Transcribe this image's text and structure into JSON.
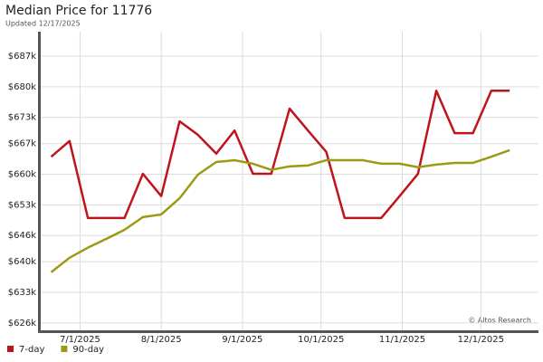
{
  "chart_data": {
    "type": "line",
    "title": "Median Price for 11776",
    "subtitle": "Updated 12/17/2025",
    "annotation": "© Altos Research",
    "x": [
      "2025-06-20",
      "2025-06-27",
      "2025-07-04",
      "2025-07-11",
      "2025-07-18",
      "2025-07-25",
      "2025-08-01",
      "2025-08-08",
      "2025-08-15",
      "2025-08-22",
      "2025-08-29",
      "2025-09-05",
      "2025-09-12",
      "2025-09-19",
      "2025-09-26",
      "2025-10-03",
      "2025-10-10",
      "2025-10-17",
      "2025-10-24",
      "2025-10-31",
      "2025-11-07",
      "2025-11-14",
      "2025-11-21",
      "2025-11-28",
      "2025-12-05",
      "2025-12-12"
    ],
    "series": [
      {
        "name": "7-day",
        "color": "#c0141c",
        "values": [
          664.0,
          667.6,
          650.0,
          650.0,
          650.0,
          660.1,
          655.0,
          672.1,
          669.0,
          664.7,
          670.0,
          660.1,
          660.1,
          675.0,
          670.0,
          665.1,
          650.0,
          650.0,
          650.0,
          655.0,
          660.1,
          679.1,
          669.4,
          669.4,
          679.1,
          679.1
        ]
      },
      {
        "name": "90-day",
        "color": "#9c9a14",
        "values": [
          637.6,
          640.9,
          643.2,
          645.2,
          647.3,
          650.2,
          650.8,
          654.5,
          659.9,
          662.8,
          663.2,
          662.4,
          661.0,
          661.8,
          662.0,
          663.2,
          663.2,
          663.2,
          662.4,
          662.4,
          661.6,
          662.2,
          662.6,
          662.6,
          664.0,
          665.5
        ]
      }
    ],
    "xlim": [
      "2025-06-16",
      "2025-12-23"
    ],
    "xticks": [
      {
        "value": "2025-07-01",
        "label": "7/1/2025"
      },
      {
        "value": "2025-08-01",
        "label": "8/1/2025"
      },
      {
        "value": "2025-09-01",
        "label": "9/1/2025"
      },
      {
        "value": "2025-10-01",
        "label": "10/1/2025"
      },
      {
        "value": "2025-11-01",
        "label": "11/1/2025"
      },
      {
        "value": "2025-12-01",
        "label": "12/1/2025"
      }
    ],
    "ylim": [
      624.3,
      692.6
    ],
    "yticks": [
      {
        "value": 626,
        "label": "$626k"
      },
      {
        "value": 633,
        "label": "$633k"
      },
      {
        "value": 640,
        "label": "$640k"
      },
      {
        "value": 646,
        "label": "$646k"
      },
      {
        "value": 653,
        "label": "$653k"
      },
      {
        "value": 660,
        "label": "$660k"
      },
      {
        "value": 667,
        "label": "$667k"
      },
      {
        "value": 673,
        "label": "$673k"
      },
      {
        "value": 680,
        "label": "$680k"
      },
      {
        "value": 687,
        "label": "$687k"
      }
    ],
    "grid": true
  }
}
